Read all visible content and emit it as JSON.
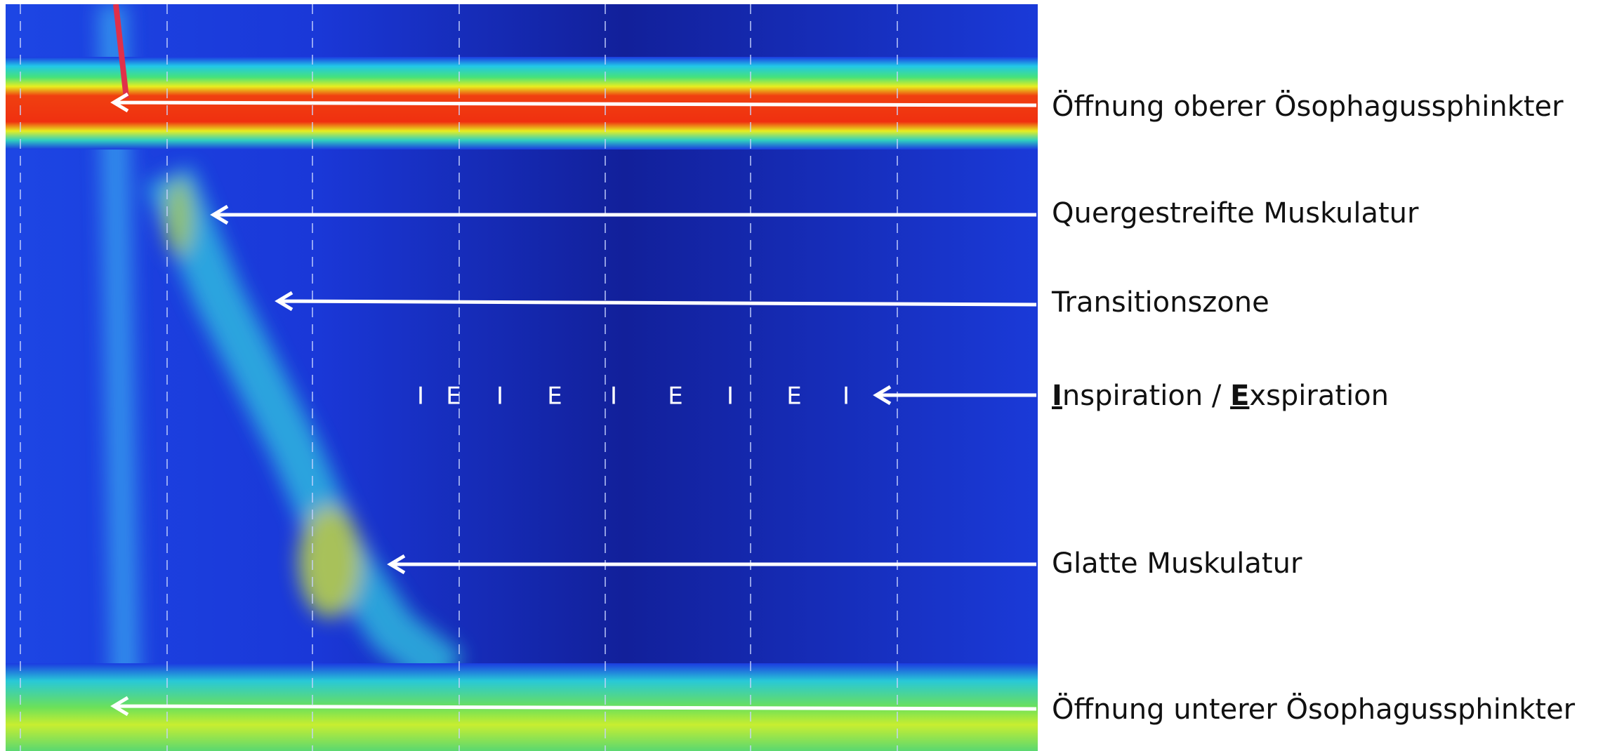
{
  "labels": [
    "Öffnung oberer Ösophagussphinkter",
    "Quergestreifte Muskulatur",
    "Transitionszone",
    "Glatte Muskulatur",
    "Öffnung unterer Ösophagussphinkter"
  ],
  "breathing_label": [
    "I",
    "nspiration / ",
    "E",
    "xspiration"
  ],
  "phases": [
    "I",
    "E",
    "I",
    "E",
    "I",
    "E",
    "I",
    "E",
    "I"
  ]
}
